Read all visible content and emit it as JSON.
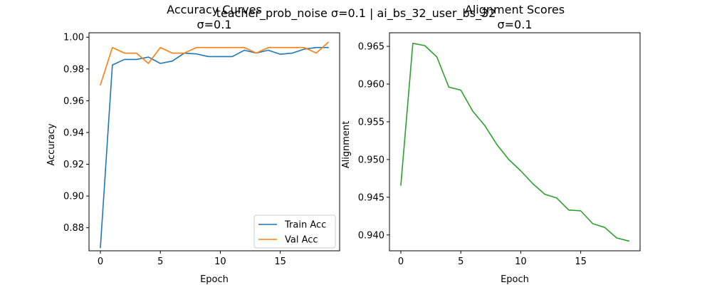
{
  "suptitle": "teacher_prob_noise σ=0.1 | ai_bs_32_user_bs_32",
  "colors": {
    "train": "#1f77b4",
    "val": "#ff7f0e",
    "alignment": "#2ca02c"
  },
  "chart_data": [
    {
      "type": "line",
      "title": "Accuracy Curves",
      "subtitle": "σ=0.1",
      "xlabel": "Epoch",
      "ylabel": "Accuracy",
      "xlim": [
        -0.95,
        19.95
      ],
      "ylim": [
        0.8655,
        1.0028
      ],
      "xticks": [
        0,
        5,
        10,
        15
      ],
      "yticks": [
        0.88,
        0.9,
        0.92,
        0.94,
        0.96,
        0.98,
        1.0
      ],
      "ytick_labels": [
        "0.88",
        "0.90",
        "0.92",
        "0.94",
        "0.96",
        "0.98",
        "1.00"
      ],
      "legend_position": "lower-right",
      "x": [
        0,
        1,
        2,
        3,
        4,
        5,
        6,
        7,
        8,
        9,
        10,
        11,
        12,
        13,
        14,
        15,
        16,
        17,
        18,
        19
      ],
      "series": [
        {
          "name": "Train Acc",
          "color_key": "train",
          "values": [
            0.8675,
            0.9825,
            0.986,
            0.986,
            0.9875,
            0.9835,
            0.985,
            0.99,
            0.9895,
            0.9878,
            0.9878,
            0.9878,
            0.9918,
            0.99,
            0.9918,
            0.9893,
            0.99,
            0.9925,
            0.9935,
            0.9935
          ]
        },
        {
          "name": "Val Acc",
          "color_key": "val",
          "values": [
            0.97,
            0.9935,
            0.99,
            0.99,
            0.9835,
            0.9935,
            0.99,
            0.99,
            0.9935,
            0.9935,
            0.9935,
            0.9935,
            0.9935,
            0.99,
            0.9935,
            0.9935,
            0.9935,
            0.9935,
            0.99,
            0.9968
          ]
        }
      ]
    },
    {
      "type": "line",
      "title": "Alignment Scores",
      "subtitle": "σ=0.1",
      "xlabel": "Epoch",
      "ylabel": "Alignment",
      "xlim": [
        -0.95,
        19.95
      ],
      "ylim": [
        0.9379,
        0.9668
      ],
      "xticks": [
        0,
        5,
        10,
        15
      ],
      "yticks": [
        0.94,
        0.945,
        0.95,
        0.955,
        0.96,
        0.965
      ],
      "ytick_labels": [
        "0.940",
        "0.945",
        "0.950",
        "0.955",
        "0.960",
        "0.965"
      ],
      "x": [
        0,
        1,
        2,
        3,
        4,
        5,
        6,
        7,
        8,
        9,
        10,
        11,
        12,
        13,
        14,
        15,
        16,
        17,
        18,
        19
      ],
      "series": [
        {
          "color_key": "alignment",
          "values": [
            0.9466,
            0.9654,
            0.9651,
            0.9636,
            0.9596,
            0.9592,
            0.9564,
            0.9545,
            0.952,
            0.95,
            0.9485,
            0.9468,
            0.9454,
            0.9449,
            0.9433,
            0.9432,
            0.9415,
            0.941,
            0.9396,
            0.9392
          ]
        }
      ]
    }
  ]
}
